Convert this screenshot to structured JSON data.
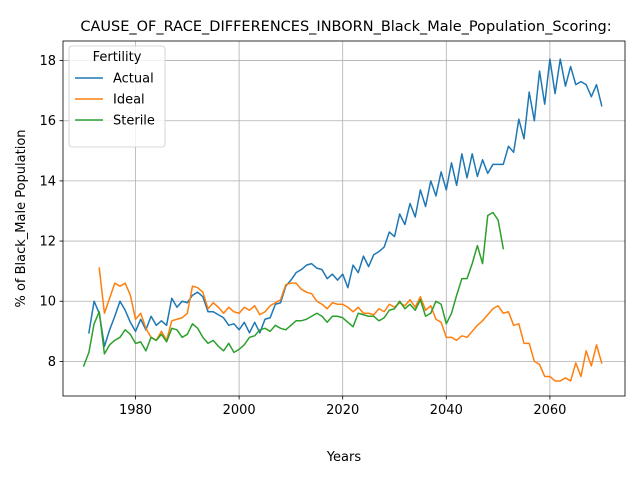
{
  "chart_data": {
    "type": "line",
    "title": "CAUSE_OF_RACE_DIFFERENCES_INBORN_Black_Male_Population_Scoring:",
    "xlabel": "Years",
    "ylabel": "% of Black_Male Population",
    "xlim": [
      1966,
      2074.5
    ],
    "ylim": [
      6.85,
      18.65
    ],
    "x_ticks": [
      1980,
      2000,
      2020,
      2040,
      2060
    ],
    "y_ticks": [
      8,
      10,
      12,
      14,
      16,
      18
    ],
    "grid": true,
    "legend": {
      "title": "Fertility",
      "placement": "top-left"
    },
    "series": [
      {
        "name": "Actual",
        "color": "#1f77b4",
        "x": [
          1971,
          1972,
          1973,
          1974,
          1975,
          1976,
          1977,
          1978,
          1979,
          1980,
          1981,
          1982,
          1983,
          1984,
          1985,
          1986,
          1987,
          1988,
          1989,
          1990,
          1991,
          1992,
          1993,
          1994,
          1995,
          1996,
          1997,
          1998,
          1999,
          2000,
          2001,
          2002,
          2003,
          2004,
          2005,
          2006,
          2007,
          2008,
          2009,
          2010,
          2011,
          2012,
          2013,
          2014,
          2015,
          2016,
          2017,
          2018,
          2019,
          2020,
          2021,
          2022,
          2023,
          2024,
          2025,
          2026,
          2027,
          2028,
          2029,
          2030,
          2031,
          2032,
          2033,
          2034,
          2035,
          2036,
          2037,
          2038,
          2039,
          2040,
          2041,
          2042,
          2043,
          2044,
          2045,
          2046,
          2047,
          2048,
          2049,
          2050,
          2051,
          2052,
          2053,
          2054,
          2055,
          2056,
          2057,
          2058,
          2059,
          2060,
          2061,
          2062,
          2063,
          2064,
          2065,
          2066,
          2067,
          2068,
          2069,
          2070
        ],
        "values": [
          8.95,
          10.0,
          9.6,
          8.5,
          9.05,
          9.5,
          10.0,
          9.7,
          9.3,
          9.0,
          9.4,
          9.05,
          9.5,
          9.2,
          9.35,
          9.2,
          10.1,
          9.8,
          10.0,
          9.95,
          10.2,
          10.3,
          10.15,
          9.65,
          9.65,
          9.55,
          9.45,
          9.2,
          9.25,
          9.05,
          9.3,
          8.95,
          9.3,
          8.95,
          9.4,
          9.45,
          9.9,
          9.95,
          10.5,
          10.7,
          10.95,
          11.05,
          11.2,
          11.25,
          11.1,
          11.05,
          10.75,
          10.9,
          10.7,
          10.9,
          10.45,
          11.2,
          10.95,
          11.5,
          11.15,
          11.55,
          11.65,
          11.8,
          12.3,
          12.15,
          12.9,
          12.55,
          13.25,
          12.8,
          13.7,
          13.15,
          14.0,
          13.5,
          14.3,
          13.7,
          14.6,
          13.85,
          14.9,
          14.1,
          14.9,
          14.15,
          14.7,
          14.25,
          14.55,
          14.55,
          14.55,
          15.15,
          14.95,
          16.05,
          15.4,
          16.95,
          16.0,
          17.65,
          16.55,
          18.05,
          16.9,
          18.05,
          17.15,
          17.8,
          17.2,
          17.3,
          17.2,
          16.8,
          17.2,
          16.5
        ]
      },
      {
        "name": "Ideal",
        "color": "#ff7f0e",
        "x": [
          1973,
          1974,
          1975,
          1976,
          1977,
          1978,
          1979,
          1980,
          1981,
          1982,
          1983,
          1984,
          1985,
          1986,
          1987,
          1988,
          1989,
          1990,
          1991,
          1992,
          1993,
          1994,
          1995,
          1996,
          1997,
          1998,
          1999,
          2000,
          2001,
          2002,
          2003,
          2004,
          2005,
          2006,
          2007,
          2008,
          2009,
          2010,
          2011,
          2012,
          2013,
          2014,
          2015,
          2016,
          2017,
          2018,
          2019,
          2020,
          2021,
          2022,
          2023,
          2024,
          2025,
          2026,
          2027,
          2028,
          2029,
          2030,
          2031,
          2032,
          2033,
          2034,
          2035,
          2036,
          2037,
          2038,
          2039,
          2040,
          2041,
          2042,
          2043,
          2044,
          2045,
          2046,
          2047,
          2048,
          2049,
          2050,
          2051,
          2052,
          2053,
          2054,
          2055,
          2056,
          2057,
          2058,
          2059,
          2060,
          2061,
          2062,
          2063,
          2064,
          2065,
          2066,
          2067,
          2068,
          2069,
          2070
        ],
        "values": [
          11.1,
          9.6,
          10.1,
          10.6,
          10.5,
          10.6,
          10.2,
          9.4,
          9.6,
          9.1,
          8.8,
          8.7,
          9.0,
          8.7,
          9.35,
          9.4,
          9.45,
          9.6,
          10.5,
          10.45,
          10.3,
          9.75,
          9.95,
          9.8,
          9.6,
          9.8,
          9.65,
          9.6,
          9.8,
          9.7,
          9.85,
          9.55,
          9.65,
          9.85,
          9.95,
          10.05,
          10.55,
          10.6,
          10.6,
          10.4,
          10.3,
          10.25,
          10.0,
          9.9,
          9.75,
          9.95,
          9.9,
          9.9,
          9.8,
          9.65,
          9.8,
          9.6,
          9.6,
          9.55,
          9.75,
          9.65,
          9.9,
          9.8,
          9.95,
          9.85,
          10.05,
          9.8,
          10.15,
          9.7,
          9.85,
          9.4,
          9.3,
          8.8,
          8.8,
          8.7,
          8.85,
          8.8,
          9.0,
          9.2,
          9.35,
          9.55,
          9.75,
          9.85,
          9.6,
          9.65,
          9.2,
          9.25,
          8.6,
          8.6,
          8.0,
          7.9,
          7.5,
          7.5,
          7.35,
          7.35,
          7.45,
          7.35,
          7.95,
          7.5,
          8.35,
          7.85,
          8.55,
          7.95
        ]
      },
      {
        "name": "Sterile",
        "color": "#2ca02c",
        "x": [
          1970,
          1971,
          1972,
          1973,
          1974,
          1975,
          1976,
          1977,
          1978,
          1979,
          1980,
          1981,
          1982,
          1983,
          1984,
          1985,
          1986,
          1987,
          1988,
          1989,
          1990,
          1991,
          1992,
          1993,
          1994,
          1995,
          1996,
          1997,
          1998,
          1999,
          2000,
          2001,
          2002,
          2003,
          2004,
          2005,
          2006,
          2007,
          2008,
          2009,
          2010,
          2011,
          2012,
          2013,
          2014,
          2015,
          2016,
          2017,
          2018,
          2019,
          2020,
          2021,
          2022,
          2023,
          2024,
          2025,
          2026,
          2027,
          2028,
          2029,
          2030,
          2031,
          2032,
          2033,
          2034,
          2035,
          2036,
          2037,
          2038,
          2039,
          2040,
          2041,
          2042,
          2043,
          2044,
          2045,
          2046,
          2047,
          2048,
          2049,
          2050,
          2051
        ],
        "values": [
          7.85,
          8.3,
          9.25,
          9.65,
          8.25,
          8.55,
          8.7,
          8.8,
          9.05,
          8.9,
          8.6,
          8.65,
          8.35,
          8.8,
          8.7,
          8.9,
          8.65,
          9.1,
          9.05,
          8.8,
          8.9,
          9.25,
          9.1,
          8.8,
          8.6,
          8.7,
          8.5,
          8.35,
          8.6,
          8.3,
          8.4,
          8.55,
          8.8,
          8.85,
          9.05,
          9.1,
          9.0,
          9.2,
          9.1,
          9.05,
          9.2,
          9.35,
          9.35,
          9.4,
          9.5,
          9.6,
          9.5,
          9.3,
          9.5,
          9.5,
          9.45,
          9.3,
          9.15,
          9.6,
          9.55,
          9.5,
          9.5,
          9.35,
          9.45,
          9.7,
          9.75,
          10.0,
          9.75,
          9.9,
          9.7,
          10.05,
          9.5,
          9.6,
          10.0,
          9.9,
          9.25,
          9.6,
          10.2,
          10.75,
          10.75,
          11.25,
          11.85,
          11.25,
          12.85,
          12.95,
          12.7,
          11.75
        ]
      }
    ]
  }
}
